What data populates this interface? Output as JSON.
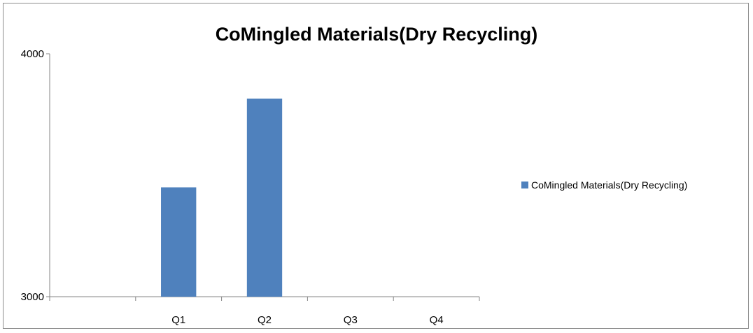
{
  "chart_data": {
    "type": "bar",
    "title": "CoMingled Materials(Dry Recycling)",
    "categories": [
      "",
      "Q1",
      "Q2",
      "Q3",
      "Q4"
    ],
    "series": [
      {
        "name": "CoMingled Materials(Dry Recycling)",
        "values": [
          null,
          3450,
          3815,
          null,
          null
        ],
        "color": "#4f81bd"
      }
    ],
    "ylim": [
      3000,
      4000
    ],
    "y_ticks": [
      "4000",
      "3000"
    ],
    "xlabel": "",
    "ylabel": "",
    "grid": false,
    "legend": "right"
  }
}
